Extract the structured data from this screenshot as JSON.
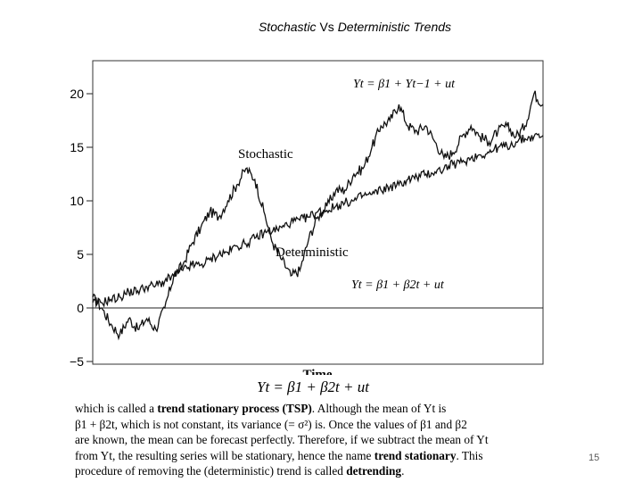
{
  "slide": {
    "title_part1": "Stochastic",
    "title_part2": "Vs",
    "title_part3": "Deterministic Trends",
    "page_number": "15"
  },
  "chart_data": {
    "type": "line",
    "title": "",
    "xlabel": "Time",
    "ylabel": "",
    "ylim": [
      -5,
      22
    ],
    "xlim": [
      0,
      500
    ],
    "yticks": [
      -5,
      0,
      5,
      10,
      15,
      20
    ],
    "ytick_labels": [
      "−5",
      "0",
      "5",
      "10",
      "15",
      "20"
    ],
    "grid": false,
    "series": [
      {
        "name": "Stochastic",
        "label_text": "Stochastic",
        "equation": "Yt = β1 + Yt−1 + ut",
        "x": [
          0,
          10,
          20,
          30,
          40,
          50,
          60,
          70,
          80,
          90,
          100,
          110,
          120,
          130,
          140,
          150,
          160,
          170,
          180,
          190,
          200,
          210,
          220,
          230,
          240,
          250,
          260,
          270,
          280,
          290,
          300,
          310,
          320,
          330,
          340,
          350,
          360,
          370,
          380,
          390,
          400,
          410,
          420,
          430,
          440,
          450,
          460,
          470,
          480,
          490,
          500
        ],
        "values": [
          1,
          0,
          -1.5,
          -2.5,
          -1,
          -2,
          -1,
          -2,
          0,
          3,
          4,
          6,
          7.5,
          9,
          8.5,
          10,
          11.5,
          13,
          12,
          9,
          6,
          4.5,
          3,
          3.5,
          6.5,
          8.5,
          9.5,
          11,
          11,
          12.5,
          13,
          15,
          17,
          17.5,
          19,
          17,
          16.5,
          17,
          15.5,
          14,
          14.5,
          16,
          17,
          16,
          15.5,
          16.5,
          17,
          16,
          17,
          20,
          19
        ]
      },
      {
        "name": "Deterministic",
        "label_text": "Deterministic",
        "equation": "Yt = β1 + β2t + ut",
        "x": [
          0,
          10,
          20,
          30,
          40,
          50,
          60,
          70,
          80,
          90,
          100,
          110,
          120,
          130,
          140,
          150,
          160,
          170,
          180,
          190,
          200,
          210,
          220,
          230,
          240,
          250,
          260,
          270,
          280,
          290,
          300,
          310,
          320,
          330,
          340,
          350,
          360,
          370,
          380,
          390,
          400,
          410,
          420,
          430,
          440,
          450,
          460,
          470,
          480,
          490,
          500
        ],
        "values": [
          0.5,
          0.5,
          0.8,
          1,
          1.5,
          1.6,
          2,
          2.1,
          2.5,
          3,
          3.5,
          4,
          4,
          4.5,
          5,
          5.2,
          5.8,
          6,
          6.5,
          7,
          7.2,
          7.5,
          8,
          8.2,
          8.5,
          9,
          9.1,
          9.5,
          9.8,
          10,
          10.5,
          10.6,
          11,
          11.3,
          11.5,
          12,
          12.2,
          12.5,
          12.7,
          13,
          13.4,
          13.6,
          14,
          14.3,
          14.5,
          15,
          15.1,
          15.5,
          15.8,
          16,
          16.1
        ]
      }
    ]
  },
  "figure": {
    "caption": "Yt = β1 + β2t + ut"
  },
  "body": {
    "l1_a": "which is called a ",
    "l1_b": "trend stationary process (TSP)",
    "l1_c": ". Although the mean of Yt is",
    "l2": "β1 + β2t, which is not constant, its variance (= σ²) is. Once the values of β1 and β2",
    "l3": "are known, the mean can be forecast perfectly. Therefore, if we subtract the mean of Yt",
    "l4_a": "from Yt, the resulting series will be stationary, hence the name ",
    "l4_b": "trend stationary",
    "l4_c": ". This",
    "l5_a": "procedure of removing the (deterministic) trend is called ",
    "l5_b": "detrending",
    "l5_c": "."
  }
}
